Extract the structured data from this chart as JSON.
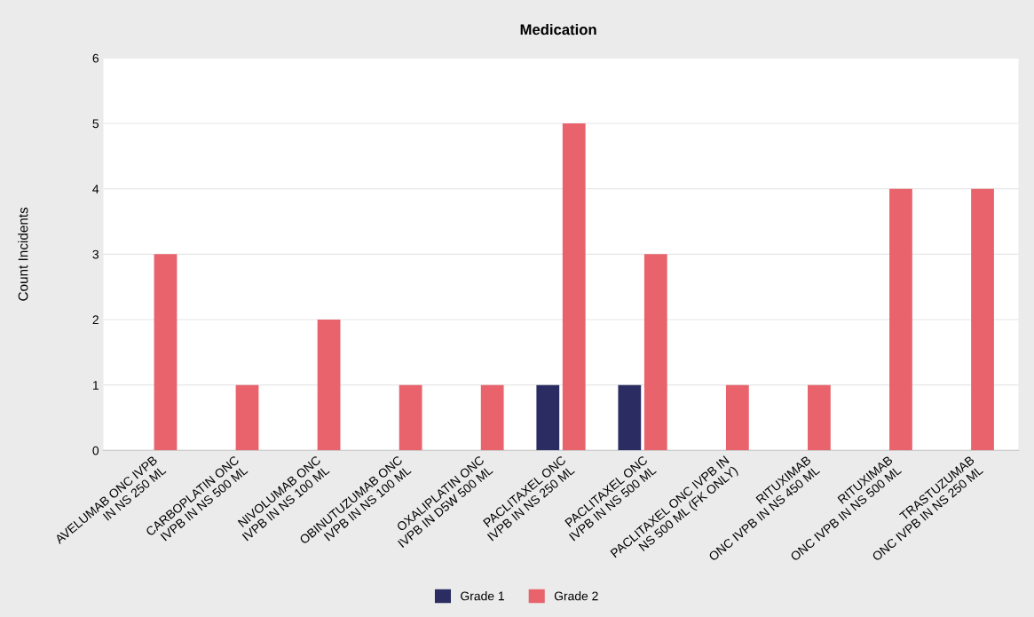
{
  "chart_data": {
    "type": "bar",
    "title": "Medication",
    "ylabel": "Count Incidents",
    "categories": [
      "AVELUMAB ONC IVPB\nIN NS 250 ML",
      "CARBOPLATIN ONC\nIVPB IN NS 500 ML",
      "NIVOLUMAB ONC\nIVPB IN NS 100 ML",
      "OBINUTUZUMAB ONC\nIVPB IN NS 100 ML",
      "OXALIPLATIN ONC\nIVPB IN D5W 500 ML",
      "PACLITAXEL ONC\nIVPB IN NS 250 ML",
      "PACLITAXEL ONC\nIVPB IN NS 500 ML",
      "PACLITAXEL ONC IVPB IN\nNS 500 ML (FK ONLY)",
      "RITUXIMAB\nONC IVPB IN NS 450 ML",
      "RITUXIMAB\nONC IVPB IN NS 500 ML",
      "TRASTUZUMAB\nONC IVPB IN NS 250 ML"
    ],
    "series": [
      {
        "name": "Grade 1",
        "color": "#2b2d62",
        "values": [
          null,
          null,
          null,
          null,
          null,
          1,
          1,
          null,
          null,
          null,
          null
        ]
      },
      {
        "name": "Grade 2",
        "color": "#e8636b",
        "values": [
          3,
          1,
          2,
          1,
          1,
          5,
          3,
          1,
          1,
          4,
          4
        ]
      }
    ],
    "ylim": [
      0,
      6
    ],
    "yticks": [
      0,
      1,
      2,
      3,
      4,
      5,
      6
    ],
    "grid": "y",
    "legend": "bottom"
  }
}
